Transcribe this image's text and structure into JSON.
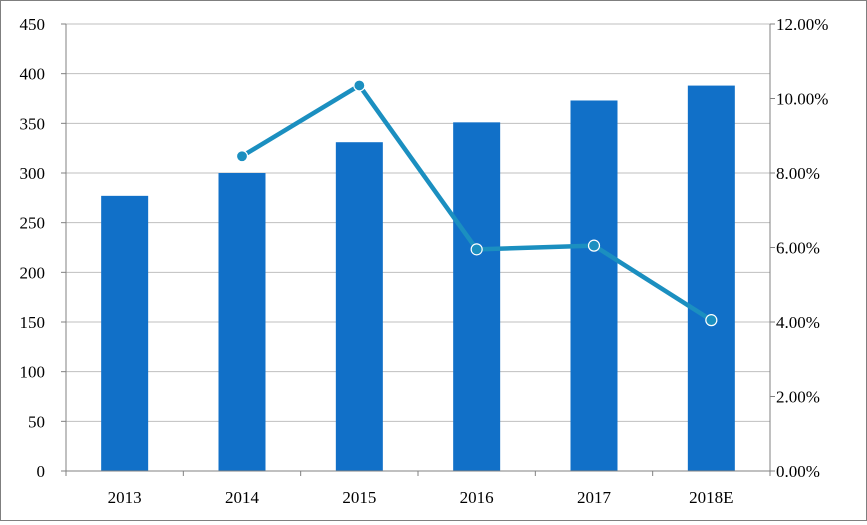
{
  "chart_data": {
    "type": "bar",
    "categories": [
      "2013",
      "2014",
      "2015",
      "2016",
      "2017",
      "2018E"
    ],
    "series": [
      {
        "type": "bar",
        "axis": "left",
        "values": [
          277,
          300,
          331,
          351,
          373,
          388
        ],
        "color": "#1170c8"
      },
      {
        "type": "line",
        "axis": "right",
        "values": [
          null,
          8.45,
          10.35,
          5.95,
          6.05,
          4.05
        ],
        "color": "#1b8fc0",
        "marker": "circle"
      }
    ],
    "left_axis": {
      "ylim": [
        0,
        450
      ],
      "ticks": [
        0,
        50,
        100,
        150,
        200,
        250,
        300,
        350,
        400,
        450
      ],
      "tick_labels": [
        "0",
        "50",
        "100",
        "150",
        "200",
        "250",
        "300",
        "350",
        "400",
        "450"
      ]
    },
    "right_axis": {
      "ylim": [
        0,
        12
      ],
      "unit": "%",
      "ticks": [
        0,
        2,
        4,
        6,
        8,
        10,
        12
      ],
      "tick_labels": [
        "0.00%",
        "2.00%",
        "4.00%",
        "6.00%",
        "8.00%",
        "10.00%",
        "12.00%"
      ]
    },
    "grid": "horizontal",
    "legend": "none",
    "title": "",
    "xlabel": "",
    "ylabel": ""
  }
}
